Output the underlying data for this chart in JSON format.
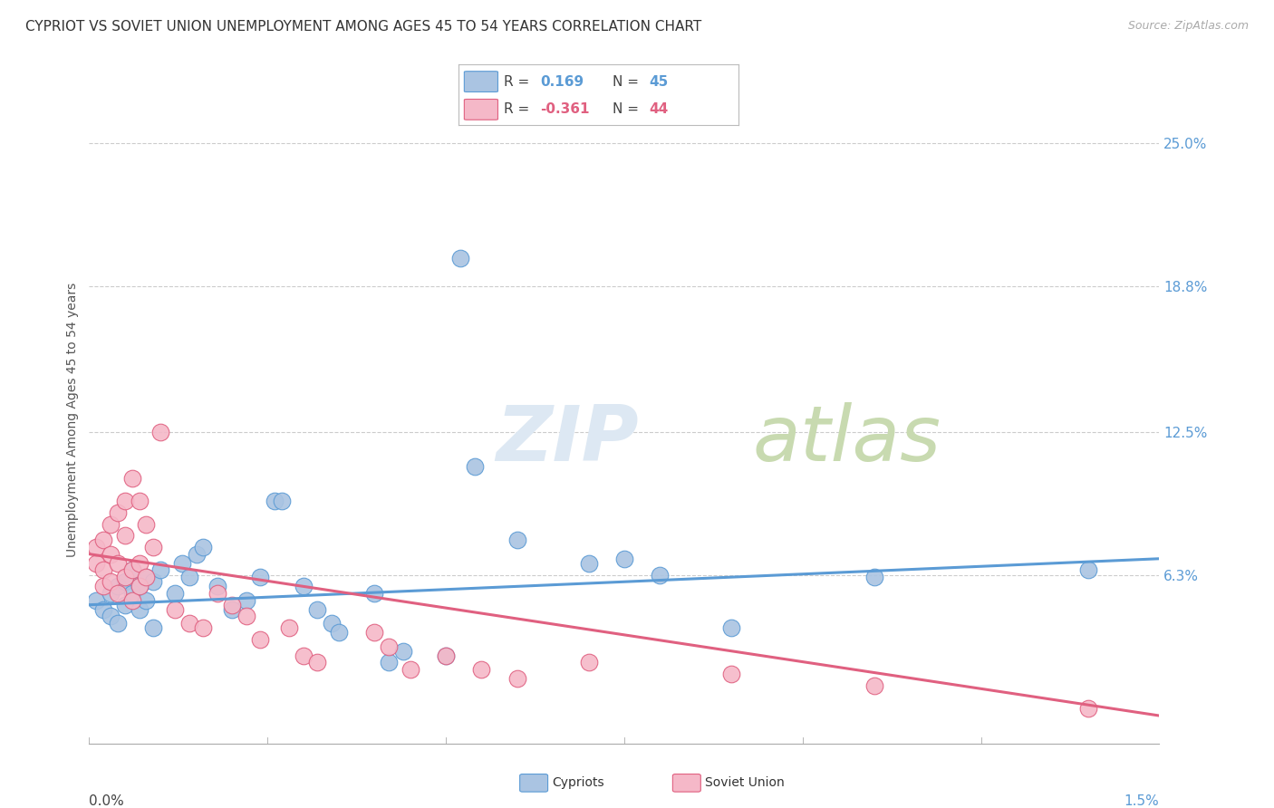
{
  "title": "CYPRIOT VS SOVIET UNION UNEMPLOYMENT AMONG AGES 45 TO 54 YEARS CORRELATION CHART",
  "source": "Source: ZipAtlas.com",
  "ylabel": "Unemployment Among Ages 45 to 54 years",
  "ytick_labels": [
    "25.0%",
    "18.8%",
    "12.5%",
    "6.3%"
  ],
  "ytick_values": [
    0.25,
    0.188,
    0.125,
    0.063
  ],
  "xmin": 0.0,
  "xmax": 0.015,
  "ymin": -0.01,
  "ymax": 0.27,
  "r_cypriot": 0.169,
  "n_cypriot": 45,
  "r_soviet": -0.361,
  "n_soviet": 44,
  "cypriot_color": "#aac4e2",
  "soviet_color": "#f5b8c8",
  "cypriot_line_color": "#5b9bd5",
  "soviet_line_color": "#e06080",
  "legend_label_cypriot": "Cypriots",
  "legend_label_soviet": "Soviet Union",
  "watermark_zip": "ZIP",
  "watermark_atlas": "atlas",
  "title_fontsize": 11,
  "axis_label_fontsize": 10,
  "tick_label_fontsize": 11,
  "cypriot_points": [
    [
      0.0001,
      0.052
    ],
    [
      0.0002,
      0.048
    ],
    [
      0.0003,
      0.045
    ],
    [
      0.0003,
      0.055
    ],
    [
      0.0004,
      0.058
    ],
    [
      0.0004,
      0.042
    ],
    [
      0.0005,
      0.06
    ],
    [
      0.0005,
      0.05
    ],
    [
      0.0006,
      0.055
    ],
    [
      0.0006,
      0.065
    ],
    [
      0.0007,
      0.058
    ],
    [
      0.0007,
      0.048
    ],
    [
      0.0008,
      0.062
    ],
    [
      0.0008,
      0.052
    ],
    [
      0.0009,
      0.06
    ],
    [
      0.0009,
      0.04
    ],
    [
      0.001,
      0.065
    ],
    [
      0.0012,
      0.055
    ],
    [
      0.0013,
      0.068
    ],
    [
      0.0014,
      0.062
    ],
    [
      0.0015,
      0.072
    ],
    [
      0.0016,
      0.075
    ],
    [
      0.0018,
      0.058
    ],
    [
      0.002,
      0.048
    ],
    [
      0.0022,
      0.052
    ],
    [
      0.0024,
      0.062
    ],
    [
      0.0026,
      0.095
    ],
    [
      0.0027,
      0.095
    ],
    [
      0.003,
      0.058
    ],
    [
      0.0032,
      0.048
    ],
    [
      0.0034,
      0.042
    ],
    [
      0.0035,
      0.038
    ],
    [
      0.004,
      0.055
    ],
    [
      0.0042,
      0.025
    ],
    [
      0.0044,
      0.03
    ],
    [
      0.005,
      0.028
    ],
    [
      0.0052,
      0.2
    ],
    [
      0.0054,
      0.11
    ],
    [
      0.006,
      0.078
    ],
    [
      0.007,
      0.068
    ],
    [
      0.0075,
      0.07
    ],
    [
      0.008,
      0.063
    ],
    [
      0.009,
      0.04
    ],
    [
      0.011,
      0.062
    ],
    [
      0.014,
      0.065
    ]
  ],
  "soviet_points": [
    [
      0.0001,
      0.068
    ],
    [
      0.0001,
      0.075
    ],
    [
      0.0002,
      0.078
    ],
    [
      0.0002,
      0.065
    ],
    [
      0.0002,
      0.058
    ],
    [
      0.0003,
      0.085
    ],
    [
      0.0003,
      0.072
    ],
    [
      0.0003,
      0.06
    ],
    [
      0.0004,
      0.09
    ],
    [
      0.0004,
      0.068
    ],
    [
      0.0004,
      0.055
    ],
    [
      0.0005,
      0.095
    ],
    [
      0.0005,
      0.08
    ],
    [
      0.0005,
      0.062
    ],
    [
      0.0006,
      0.105
    ],
    [
      0.0006,
      0.065
    ],
    [
      0.0006,
      0.052
    ],
    [
      0.0007,
      0.095
    ],
    [
      0.0007,
      0.068
    ],
    [
      0.0007,
      0.058
    ],
    [
      0.0008,
      0.085
    ],
    [
      0.0008,
      0.062
    ],
    [
      0.0009,
      0.075
    ],
    [
      0.001,
      0.125
    ],
    [
      0.0012,
      0.048
    ],
    [
      0.0014,
      0.042
    ],
    [
      0.0016,
      0.04
    ],
    [
      0.0018,
      0.055
    ],
    [
      0.002,
      0.05
    ],
    [
      0.0022,
      0.045
    ],
    [
      0.0024,
      0.035
    ],
    [
      0.0028,
      0.04
    ],
    [
      0.003,
      0.028
    ],
    [
      0.0032,
      0.025
    ],
    [
      0.004,
      0.038
    ],
    [
      0.0042,
      0.032
    ],
    [
      0.0045,
      0.022
    ],
    [
      0.005,
      0.028
    ],
    [
      0.0055,
      0.022
    ],
    [
      0.006,
      0.018
    ],
    [
      0.007,
      0.025
    ],
    [
      0.009,
      0.02
    ],
    [
      0.011,
      0.015
    ],
    [
      0.014,
      0.005
    ]
  ],
  "cypriot_trendline": [
    0.0,
    0.015,
    0.05,
    0.07
  ],
  "soviet_trendline": [
    0.0,
    0.015,
    0.072,
    0.002
  ]
}
